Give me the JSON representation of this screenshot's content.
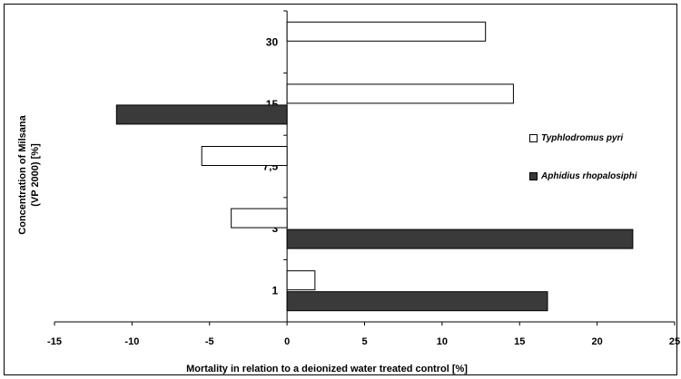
{
  "chart_data": {
    "type": "bar",
    "orientation": "horizontal",
    "categories": [
      "30",
      "15",
      "7,5",
      "3",
      "1"
    ],
    "series": [
      {
        "name": "Typhlodromus pyri",
        "color": "#ffffff",
        "values": [
          12.8,
          14.6,
          -5.5,
          -3.6,
          1.8
        ]
      },
      {
        "name": "Aphidius rhopalosiphi",
        "color": "#3a3a3a",
        "values": [
          null,
          -11.0,
          null,
          22.3,
          16.8
        ]
      }
    ],
    "xlabel": "Mortality in relation to a deionized water treated control [%]",
    "ylabel": "Concentration of Milsana\n(VP 2000) [%]",
    "xlim": [
      -15,
      25
    ],
    "xticks": [
      "-15",
      "-10",
      "-5",
      "0",
      "5",
      "10",
      "15",
      "20",
      "25"
    ],
    "grid": false,
    "legend_position": "right"
  }
}
